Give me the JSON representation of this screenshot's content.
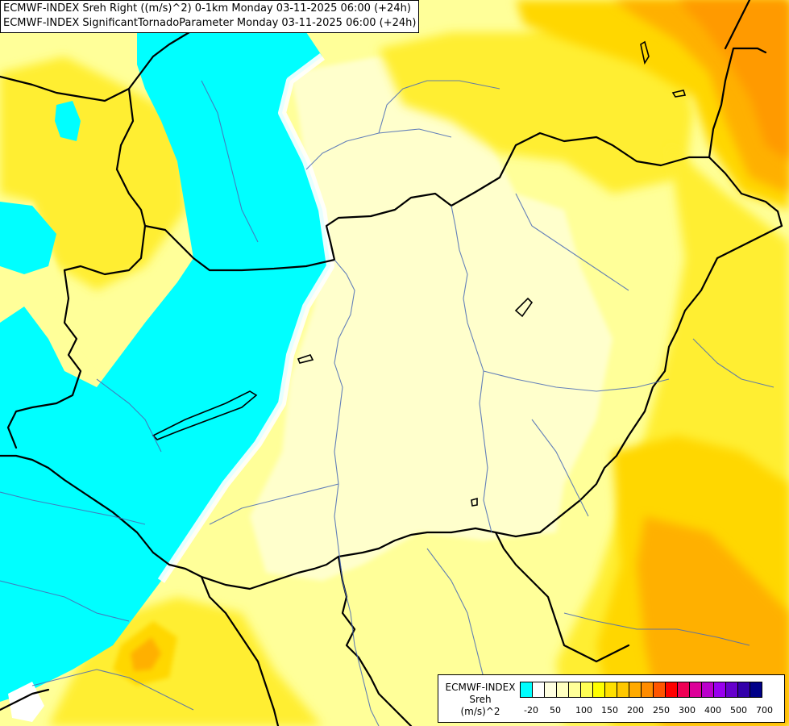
{
  "header": {
    "line1": "ECMWF-INDEX Sreh Right ((m/s)^2) 0-1km Monday 03-11-2025 06:00 (+24h)",
    "line2": "ECMWF-INDEX SignificantTornadoParameter Monday 03-11-2025 06:00 (+24h)"
  },
  "legend": {
    "source": "ECMWF-INDEX",
    "parameter": "Sreh",
    "unit": "(m/s)^2",
    "colors": [
      "#00ffff",
      "#ffffff",
      "#ffffe0",
      "#ffffc0",
      "#ffff99",
      "#ffff55",
      "#ffff00",
      "#ffe000",
      "#ffc800",
      "#ffaa00",
      "#ff8c00",
      "#ff5500",
      "#ff0000",
      "#ee0055",
      "#dd0099",
      "#bb00cc",
      "#9900ee",
      "#6600cc",
      "#3300aa",
      "#000088"
    ],
    "tick_labels": [
      "-20",
      "50",
      "100",
      "150",
      "200",
      "250",
      "300",
      "400",
      "500",
      "700"
    ]
  },
  "field_colors": {
    "cyan": "#00ffff",
    "white": "#ffffff",
    "pale": "#ffffcc",
    "light_yellow": "#ffff99",
    "yellow": "#ffee33",
    "gold": "#ffd700",
    "orange": "#ffb000",
    "dark_orange": "#ff9a00",
    "borders": "#000000",
    "rivers": "#4a6bb5"
  }
}
